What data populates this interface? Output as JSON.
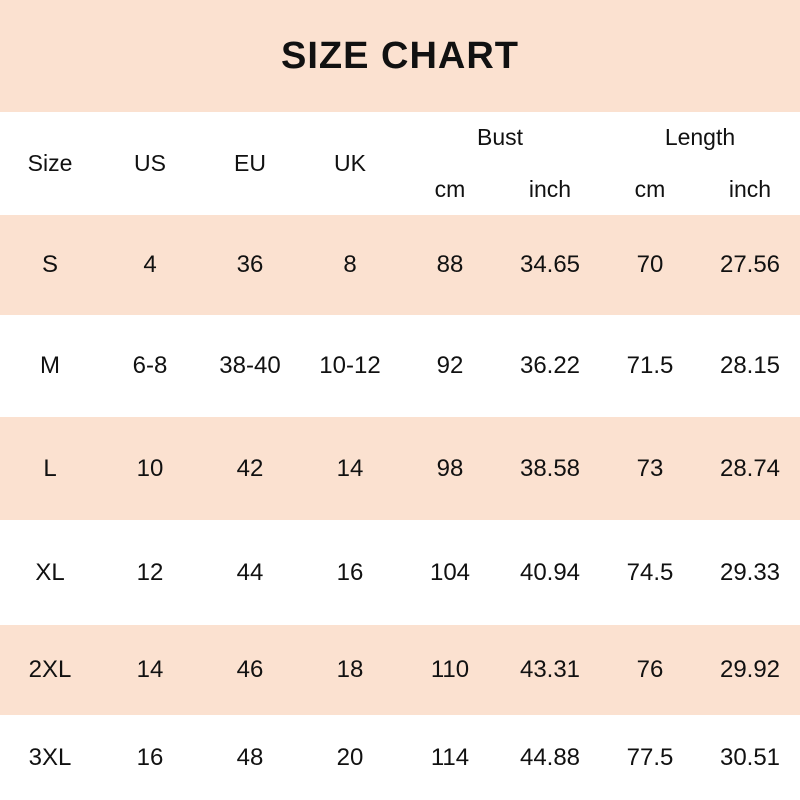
{
  "title": "SIZE CHART",
  "colors": {
    "banner_background": "#fbe1d0",
    "row_shade": "#fbe1d0",
    "row_base": "#ffffff",
    "text": "#111111"
  },
  "chart_data": {
    "type": "table",
    "title": "SIZE CHART",
    "header": {
      "size": "Size",
      "us": "US",
      "eu": "EU",
      "uk": "UK",
      "bust": "Bust",
      "length": "Length",
      "bust_cm": "cm",
      "bust_inch": "inch",
      "length_cm": "cm",
      "length_inch": "inch"
    },
    "column_groups": [
      {
        "label": "Bust",
        "sub": [
          "cm",
          "inch"
        ]
      },
      {
        "label": "Length",
        "sub": [
          "cm",
          "inch"
        ]
      }
    ],
    "columns": [
      "Size",
      "US",
      "EU",
      "UK",
      "Bust cm",
      "Bust inch",
      "Length cm",
      "Length inch"
    ],
    "rows": [
      {
        "cells": [
          "S",
          "4",
          "36",
          "8",
          "88",
          "34.65",
          "70",
          "27.56"
        ]
      },
      {
        "cells": [
          "M",
          "6-8",
          "38-40",
          "10-12",
          "92",
          "36.22",
          "71.5",
          "28.15"
        ]
      },
      {
        "cells": [
          "L",
          "10",
          "42",
          "14",
          "98",
          "38.58",
          "73",
          "28.74"
        ]
      },
      {
        "cells": [
          "XL",
          "12",
          "44",
          "16",
          "104",
          "40.94",
          "74.5",
          "29.33"
        ]
      },
      {
        "cells": [
          "2XL",
          "14",
          "46",
          "18",
          "110",
          "43.31",
          "76",
          "29.92"
        ]
      },
      {
        "cells": [
          "3XL",
          "16",
          "48",
          "20",
          "114",
          "44.88",
          "77.5",
          "30.51"
        ]
      }
    ]
  }
}
